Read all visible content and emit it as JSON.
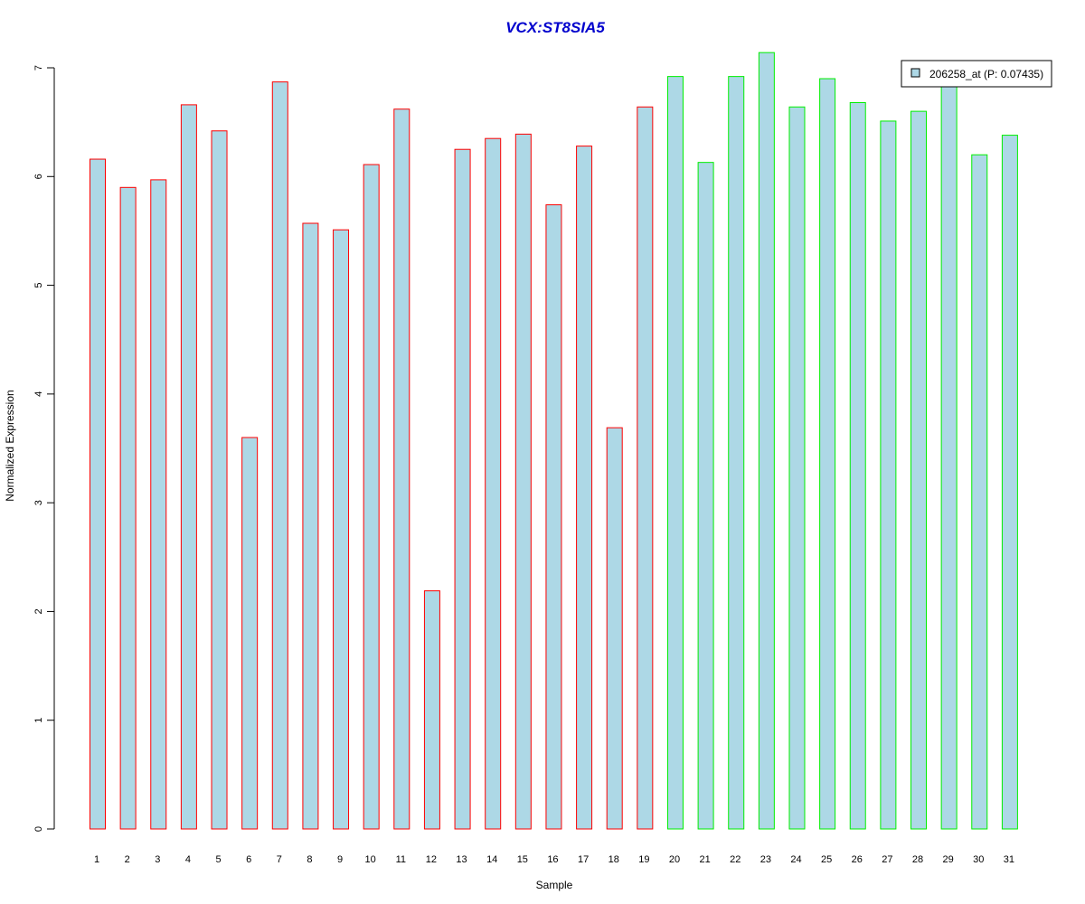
{
  "chart_data": {
    "type": "bar",
    "title": "VCX:ST8SIA5",
    "xlabel": "Sample",
    "ylabel": "Normalized Expression",
    "ylim": [
      0,
      7
    ],
    "yticks": [
      "0",
      "1",
      "2",
      "3",
      "4",
      "5",
      "6",
      "7"
    ],
    "categories": [
      "1",
      "2",
      "3",
      "4",
      "5",
      "6",
      "7",
      "8",
      "9",
      "10",
      "11",
      "12",
      "13",
      "14",
      "15",
      "16",
      "17",
      "18",
      "19",
      "20",
      "21",
      "22",
      "23",
      "24",
      "25",
      "26",
      "27",
      "28",
      "29",
      "30",
      "31"
    ],
    "values": [
      6.16,
      5.9,
      5.97,
      6.66,
      6.42,
      3.6,
      6.87,
      5.57,
      5.51,
      6.11,
      6.62,
      2.19,
      6.25,
      6.35,
      6.39,
      5.74,
      6.28,
      3.69,
      6.64,
      6.92,
      6.13,
      6.92,
      7.14,
      6.64,
      6.9,
      6.68,
      6.51,
      6.6,
      6.86,
      6.2,
      6.38
    ],
    "group_colors": [
      "#ff0000",
      "#ff0000",
      "#ff0000",
      "#ff0000",
      "#ff0000",
      "#ff0000",
      "#ff0000",
      "#ff0000",
      "#ff0000",
      "#ff0000",
      "#ff0000",
      "#ff0000",
      "#ff0000",
      "#ff0000",
      "#ff0000",
      "#ff0000",
      "#ff0000",
      "#ff0000",
      "#ff0000",
      "#00ee00",
      "#00ee00",
      "#00ee00",
      "#00ee00",
      "#00ee00",
      "#00ee00",
      "#00ee00",
      "#00ee00",
      "#00ee00",
      "#00ee00",
      "#00ee00",
      "#00ee00"
    ],
    "bar_fill": "#add8e6",
    "title_color": "#0000cd",
    "grid": false,
    "legend": {
      "position": "top-right",
      "entries": [
        {
          "label": "206258_at (P: 0.07435)",
          "color": "#add8e6"
        }
      ]
    }
  }
}
